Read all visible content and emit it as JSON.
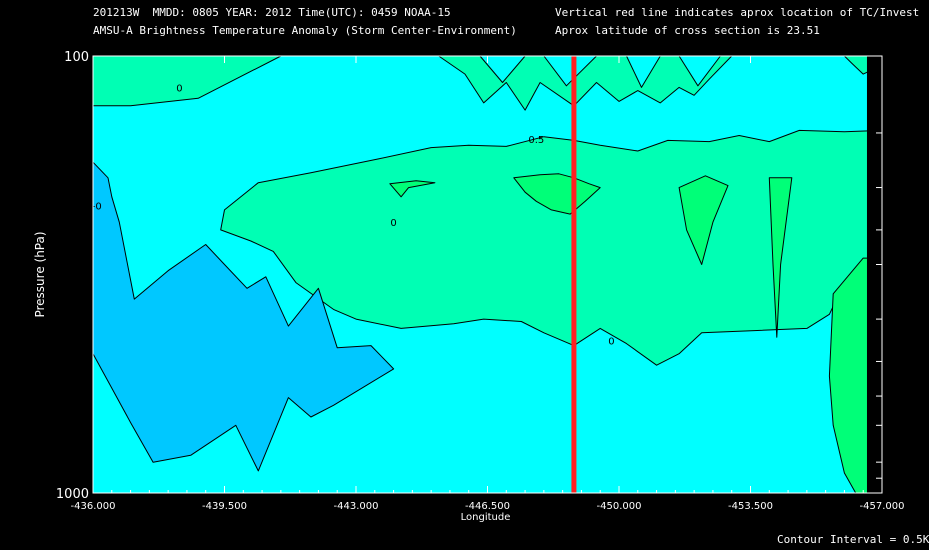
{
  "header": {
    "line1_left": "201213W  MMDD: 0805 YEAR: 2012 Time(UTC): 0459 NOAA-15",
    "line2_left": "AMSU-A Brightness Temperature Anomaly (Storm Center-Environment)",
    "line1_right": "Vertical red line indicates aprox location of TC/Invest",
    "line2_right": "Aprox latitude of cross section is 23.51"
  },
  "footer": {
    "contour_interval": "Contour Interval = 0.5K"
  },
  "colors": {
    "background": "#000000",
    "anomaly_neg_0_5": "#00c8ff",
    "anomaly_0": "#00ffff",
    "anomaly_pos_0_5": "#00ffb4",
    "anomaly_pos_1_0": "#00ff78",
    "tc_line": "#ff2020",
    "contour": "#000000",
    "missing": "#000000"
  },
  "chart_data": {
    "type": "contour",
    "title": "AMSU-A Brightness Temperature Anomaly (Storm Center-Environment)",
    "xlabel": "Longitude",
    "ylabel": "Pressure (hPa)",
    "xlim": [
      -436.0,
      -457.0
    ],
    "ylim": [
      1000,
      100
    ],
    "yscale": "log",
    "x_ticks": [
      "-436.000",
      "-439.500",
      "-443.000",
      "-446.500",
      "-450.000",
      "-453.500",
      "-457.000"
    ],
    "y_tick_labels": [
      "100",
      "1000"
    ],
    "y_minor_ticks": [
      150,
      200,
      250,
      300,
      400,
      500,
      600,
      700,
      850,
      925
    ],
    "tc_longitude": -448.8,
    "contour_labels": [
      {
        "text": "0",
        "x": -438.3,
        "p": 118
      },
      {
        "text": "0",
        "x": -444.0,
        "p": 240
      },
      {
        "text": "0",
        "x": -449.8,
        "p": 448
      },
      {
        "text": "0.5",
        "x": -447.8,
        "p": 155
      },
      {
        "text": "-0",
        "x": -436.1,
        "p": 220
      }
    ],
    "regions": [
      {
        "level": 0.5,
        "name": "top-left-warm",
        "points": [
          [
            -436.0,
            100
          ],
          [
            -441.0,
            100
          ],
          [
            -438.8,
            125
          ],
          [
            -437.0,
            130
          ],
          [
            -436.0,
            130
          ]
        ]
      },
      {
        "level": 0.5,
        "name": "top-middle-warm",
        "points": [
          [
            -445.2,
            100
          ],
          [
            -446.3,
            100
          ],
          [
            -446.9,
            115
          ],
          [
            -447.5,
            100
          ],
          [
            -448.0,
            100
          ],
          [
            -448.6,
            117
          ],
          [
            -449.4,
            100
          ],
          [
            -450.2,
            100
          ],
          [
            -450.6,
            118
          ],
          [
            -451.1,
            100
          ],
          [
            -451.6,
            100
          ],
          [
            -452.1,
            117
          ],
          [
            -452.7,
            100
          ],
          [
            -453.0,
            100
          ],
          [
            -452.4,
            113
          ],
          [
            -452.0,
            123
          ],
          [
            -451.6,
            118
          ],
          [
            -451.1,
            128
          ],
          [
            -450.5,
            120
          ],
          [
            -450.0,
            127
          ],
          [
            -449.4,
            115
          ],
          [
            -448.8,
            130
          ],
          [
            -447.9,
            115
          ],
          [
            -447.5,
            133
          ],
          [
            -447.0,
            115
          ],
          [
            -446.4,
            128
          ],
          [
            -445.9,
            110
          ]
        ]
      },
      {
        "level": 0.5,
        "name": "top-right-warm",
        "points": [
          [
            -456.0,
            100
          ],
          [
            -457.0,
            100
          ],
          [
            -457.0,
            105
          ],
          [
            -456.5,
            110
          ],
          [
            -456.2,
            104
          ]
        ]
      },
      {
        "level": 0.5,
        "name": "mid-warm-plateau",
        "points": [
          [
            -439.5,
            225
          ],
          [
            -440.4,
            195
          ],
          [
            -441.8,
            185
          ],
          [
            -443.6,
            172
          ],
          [
            -445.0,
            162
          ],
          [
            -446.0,
            160
          ],
          [
            -447.0,
            161
          ],
          [
            -448.0,
            153
          ],
          [
            -448.8,
            156
          ],
          [
            -449.5,
            160
          ],
          [
            -450.5,
            165
          ],
          [
            -451.3,
            156
          ],
          [
            -452.4,
            157
          ],
          [
            -453.2,
            152
          ],
          [
            -454.0,
            157
          ],
          [
            -454.8,
            148
          ],
          [
            -456.0,
            149
          ],
          [
            -457.0,
            148
          ],
          [
            -457.0,
            310
          ],
          [
            -456.0,
            330
          ],
          [
            -455.6,
            390
          ],
          [
            -455.0,
            420
          ],
          [
            -453.6,
            425
          ],
          [
            -452.2,
            430
          ],
          [
            -451.6,
            480
          ],
          [
            -451.0,
            510
          ],
          [
            -450.2,
            455
          ],
          [
            -449.5,
            420
          ],
          [
            -448.8,
            460
          ],
          [
            -448.0,
            430
          ],
          [
            -447.4,
            405
          ],
          [
            -446.4,
            400
          ],
          [
            -445.6,
            410
          ],
          [
            -444.2,
            420
          ],
          [
            -443.0,
            400
          ],
          [
            -442.4,
            380
          ],
          [
            -441.4,
            330
          ],
          [
            -440.8,
            280
          ],
          [
            -440.2,
            265
          ],
          [
            -439.4,
            250
          ]
        ]
      },
      {
        "level": 1.0,
        "name": "near-tc-core",
        "points": [
          [
            -447.2,
            190
          ],
          [
            -447.9,
            187
          ],
          [
            -448.4,
            186
          ],
          [
            -448.8,
            190
          ],
          [
            -449.2,
            196
          ],
          [
            -449.5,
            200
          ],
          [
            -449.1,
            215
          ],
          [
            -448.7,
            230
          ],
          [
            -448.2,
            225
          ],
          [
            -447.8,
            215
          ],
          [
            -447.5,
            205
          ]
        ]
      },
      {
        "level": 1.0,
        "name": "small-cell-left",
        "points": [
          [
            -443.9,
            196
          ],
          [
            -444.6,
            193
          ],
          [
            -445.1,
            195
          ],
          [
            -444.4,
            200
          ],
          [
            -444.2,
            210
          ]
        ]
      },
      {
        "level": 1.0,
        "name": "elongated-cell",
        "points": [
          [
            -451.6,
            200
          ],
          [
            -452.3,
            188
          ],
          [
            -452.9,
            198
          ],
          [
            -452.5,
            240
          ],
          [
            -452.2,
            300
          ],
          [
            -451.8,
            250
          ]
        ]
      },
      {
        "level": 1.0,
        "name": "thin-spike",
        "points": [
          [
            -454.0,
            190
          ],
          [
            -454.6,
            190
          ],
          [
            -454.3,
            300
          ],
          [
            -454.2,
            440
          ],
          [
            -454.1,
            300
          ]
        ]
      },
      {
        "level": 1.0,
        "name": "lower-right-warm",
        "points": [
          [
            -455.7,
            350
          ],
          [
            -456.5,
            290
          ],
          [
            -457.0,
            290
          ],
          [
            -457.0,
            1000
          ],
          [
            -456.3,
            1000
          ],
          [
            -456.0,
            900
          ],
          [
            -455.7,
            700
          ],
          [
            -455.6,
            540
          ]
        ]
      },
      {
        "level": -0.5,
        "name": "lower-left-cold",
        "points": [
          [
            -436.0,
            175
          ],
          [
            -436.4,
            190
          ],
          [
            -436.5,
            210
          ],
          [
            -436.7,
            240
          ],
          [
            -437.1,
            360
          ],
          [
            -438.0,
            310
          ],
          [
            -439.0,
            270
          ],
          [
            -439.5,
            300
          ],
          [
            -440.1,
            340
          ],
          [
            -440.6,
            320
          ],
          [
            -441.2,
            415
          ],
          [
            -442.0,
            340
          ],
          [
            -442.5,
            465
          ],
          [
            -443.4,
            460
          ],
          [
            -444.0,
            520
          ],
          [
            -442.4,
            630
          ],
          [
            -441.8,
            670
          ],
          [
            -441.2,
            605
          ],
          [
            -440.4,
            890
          ],
          [
            -439.8,
            700
          ],
          [
            -438.6,
            820
          ],
          [
            -437.6,
            850
          ],
          [
            -437.0,
            690
          ],
          [
            -436.0,
            480
          ]
        ]
      }
    ],
    "missing_data_band": {
      "from_x": -456.6,
      "to_x": -457.0,
      "p_range": [
        100,
        1000
      ]
    }
  }
}
